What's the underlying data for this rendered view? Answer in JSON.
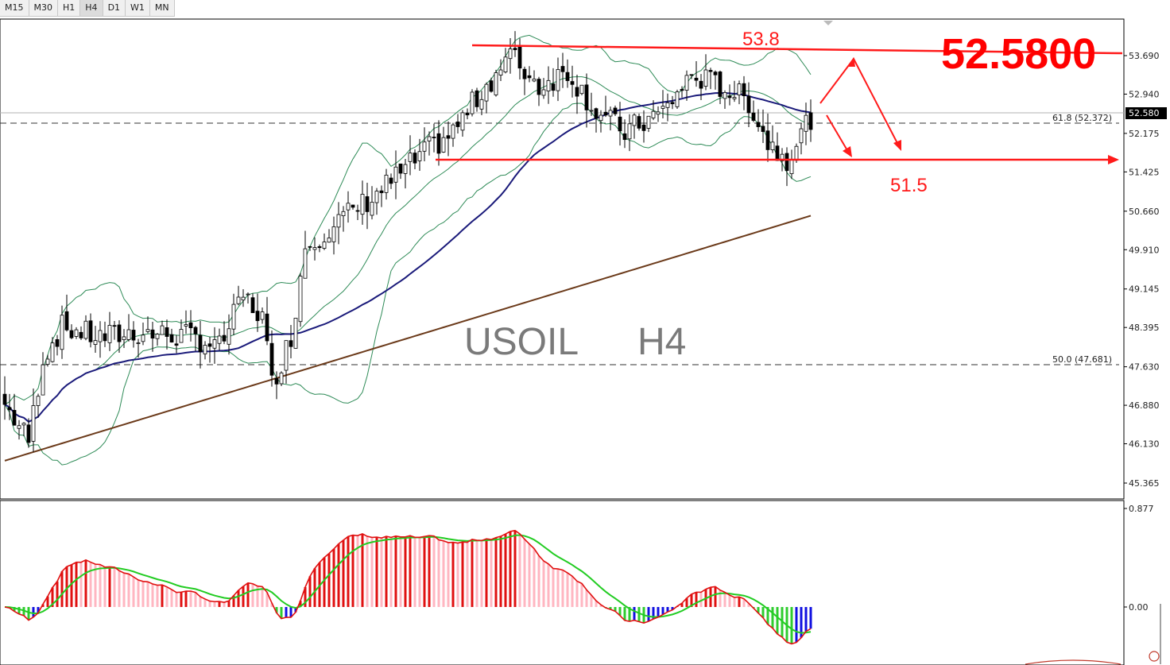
{
  "timeframes": {
    "items": [
      "M15",
      "M30",
      "H1",
      "H4",
      "D1",
      "W1",
      "MN"
    ],
    "active": "H4"
  },
  "chart": {
    "watermark_symbol": "USOIL",
    "watermark_tf": "H4",
    "big_price": "52.5800",
    "current_price_label": "52.580",
    "fib_618_label": "61.8 (52.372)",
    "fib_500_label": "50.0 (47.681)",
    "annotation_top": "53.8",
    "annotation_bottom": "51.5"
  },
  "chart_data": [
    {
      "type": "candlestick",
      "symbol": "USOIL",
      "timeframe": "H4",
      "y_ticks": [
        "53.690",
        "52.940",
        "52.175",
        "51.425",
        "50.660",
        "49.910",
        "49.145",
        "48.395",
        "47.630",
        "46.880",
        "46.130",
        "45.365"
      ],
      "ylim": [
        45.2,
        54.2
      ],
      "current_price": 52.58,
      "fib_levels": [
        {
          "label": "61.8",
          "value": 52.372
        },
        {
          "label": "50.0",
          "value": 47.681
        }
      ],
      "resistance_line": [
        53.8,
        53.69
      ],
      "support_level": 51.5,
      "indicators": [
        "Bollinger Bands",
        "Moving Average (blue)",
        "Moving Average (brown)"
      ],
      "colors": {
        "bull": "#ffffff",
        "bear": "#000000",
        "bb": "#2e8b57",
        "ma_blue": "#1a1a7a",
        "ma_brown": "#6b3a1a",
        "annotation": "#ff1a1a"
      }
    },
    {
      "type": "macd",
      "y_ticks": [
        "0.877",
        "0.00"
      ],
      "colors": {
        "hist_pos_rising": "#e01010",
        "hist_pos_falling": "#ffb6c1",
        "hist_neg_falling": "#2ecc2e",
        "hist_neg_rising": "#1010e0",
        "line_fast": "#e01010",
        "line_signal": "#22cc22"
      }
    }
  ]
}
